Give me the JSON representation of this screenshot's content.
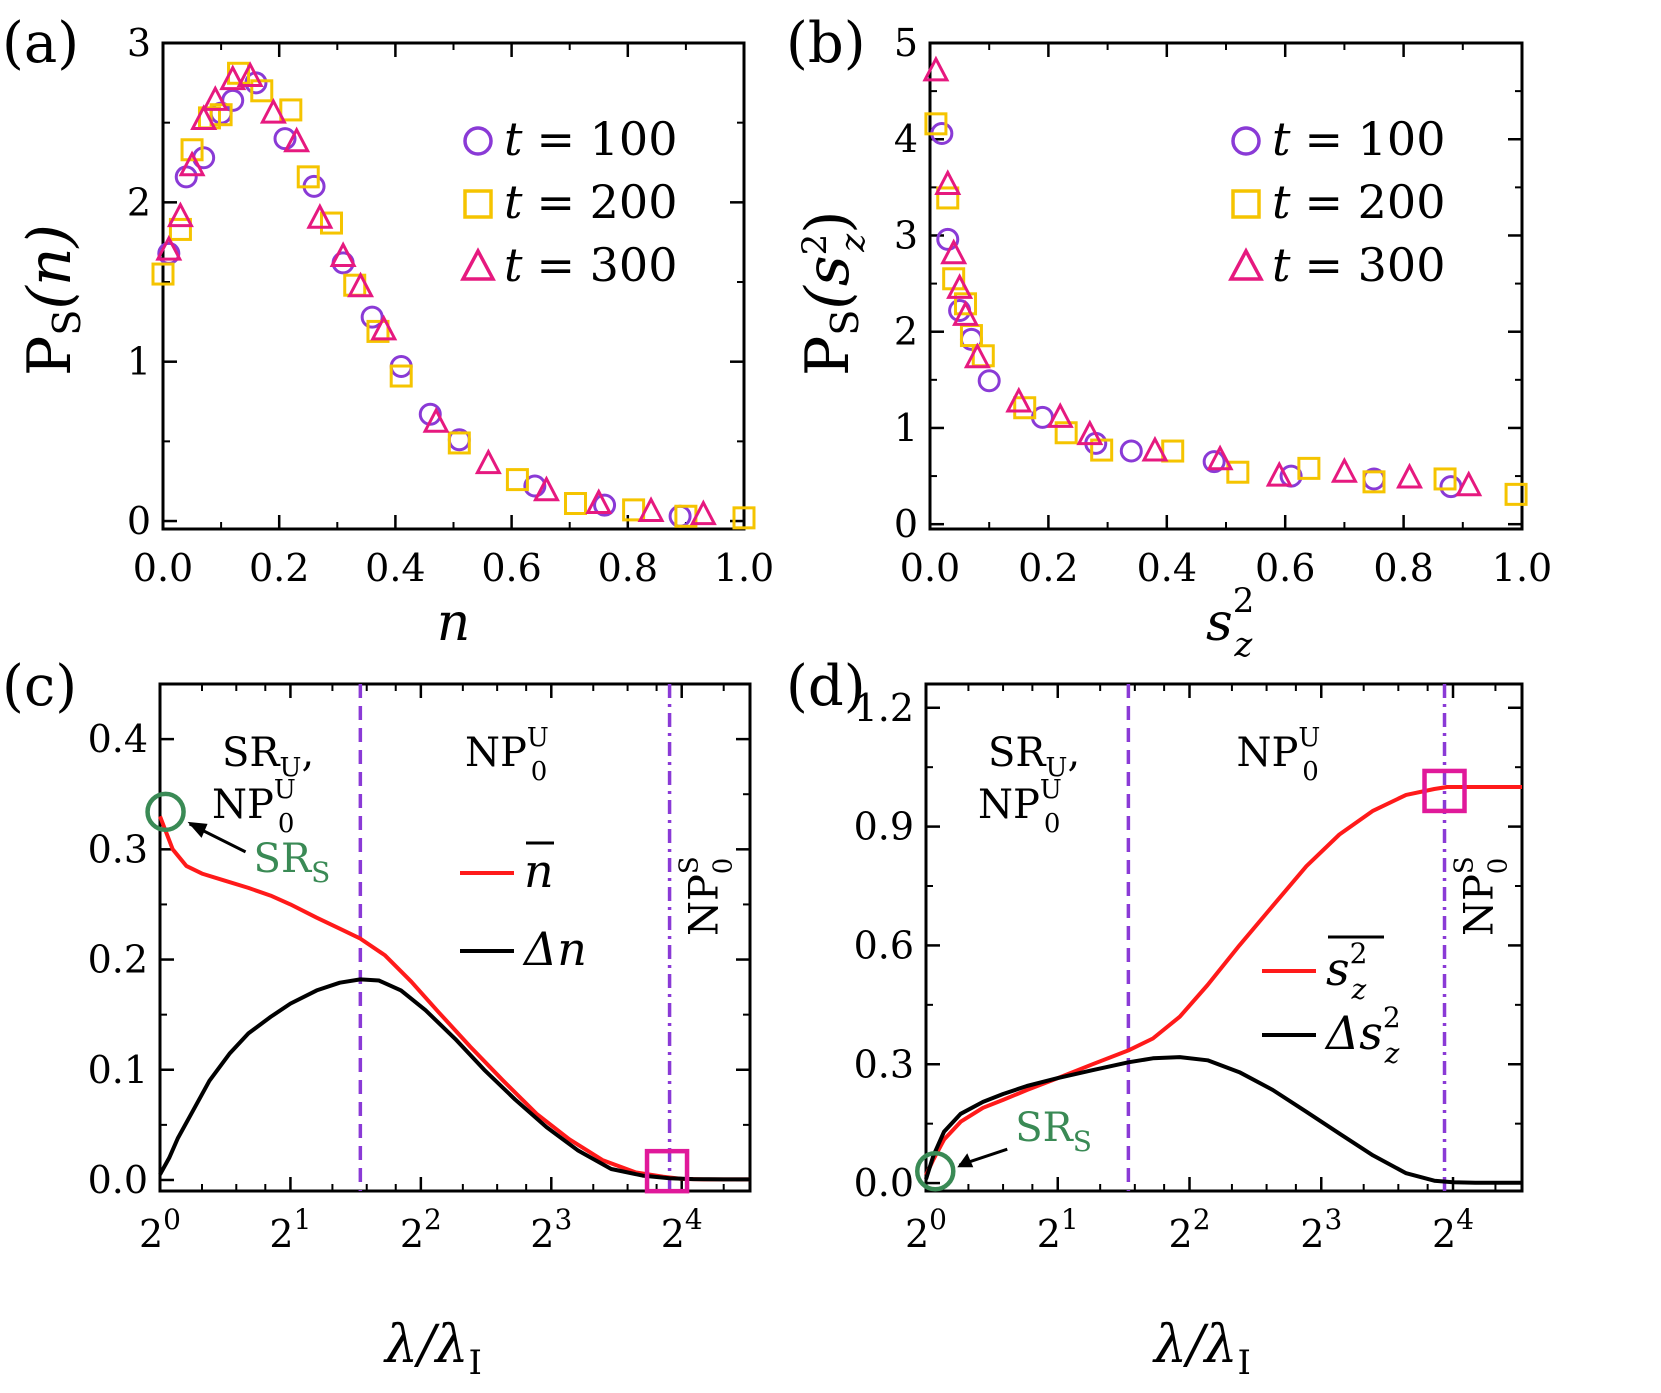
{
  "colors": {
    "purple": "#8a3ad6",
    "yellow": "#f5c400",
    "magenta": "#e6197f",
    "red": "#ff1a1a",
    "black": "#000000",
    "green": "#3a8a55",
    "dash_purple": "#8a3ad6",
    "square_magenta": "#e0199a"
  },
  "chart_data": [
    {
      "id": "a",
      "type": "scatter",
      "panel_label": "(a)",
      "xlabel": "n",
      "ylabel_main": "P",
      "ylabel_sub": "S",
      "ylabel_arg": "(n)",
      "xlim": [
        0,
        1.0
      ],
      "ylim": [
        -0.05,
        3.0
      ],
      "xticks": [
        0.0,
        0.2,
        0.4,
        0.6,
        0.8,
        1.0
      ],
      "xtick_labels": [
        "0.0",
        "0.2",
        "0.4",
        "0.6",
        "0.8",
        "1.0"
      ],
      "yticks": [
        0,
        1,
        2,
        3
      ],
      "ytick_labels": [
        "0",
        "1",
        "2",
        "3"
      ],
      "legend_position": "right",
      "series": [
        {
          "name": "t = 100",
          "label_var": "t",
          "label_val": "= 100",
          "marker": "circle",
          "color": "#8a3ad6",
          "x": [
            0.01,
            0.04,
            0.07,
            0.1,
            0.12,
            0.16,
            0.21,
            0.26,
            0.31,
            0.36,
            0.41,
            0.46,
            0.51,
            0.64,
            0.76,
            0.89
          ],
          "y": [
            1.68,
            2.16,
            2.28,
            2.56,
            2.64,
            2.75,
            2.4,
            2.1,
            1.62,
            1.28,
            0.97,
            0.67,
            0.51,
            0.22,
            0.1,
            0.03
          ]
        },
        {
          "name": "t = 200",
          "label_var": "t",
          "label_val": "= 200",
          "marker": "square",
          "color": "#f5c400",
          "x": [
            0.0,
            0.03,
            0.05,
            0.08,
            0.1,
            0.13,
            0.17,
            0.22,
            0.25,
            0.29,
            0.33,
            0.37,
            0.41,
            0.51,
            0.61,
            0.71,
            0.81,
            0.9,
            1.0
          ],
          "y": [
            1.55,
            1.83,
            2.33,
            2.53,
            2.55,
            2.81,
            2.7,
            2.58,
            2.16,
            1.87,
            1.48,
            1.19,
            0.91,
            0.49,
            0.26,
            0.11,
            0.07,
            0.03,
            0.02
          ]
        },
        {
          "name": "t = 300",
          "label_var": "t",
          "label_val": "= 300",
          "marker": "triangle",
          "color": "#e6197f",
          "x": [
            0.01,
            0.03,
            0.05,
            0.07,
            0.09,
            0.12,
            0.15,
            0.19,
            0.23,
            0.27,
            0.31,
            0.34,
            0.38,
            0.47,
            0.56,
            0.66,
            0.75,
            0.84,
            0.93
          ],
          "y": [
            1.7,
            1.91,
            2.23,
            2.52,
            2.64,
            2.77,
            2.79,
            2.56,
            2.38,
            1.9,
            1.66,
            1.47,
            1.2,
            0.62,
            0.36,
            0.19,
            0.11,
            0.06,
            0.04
          ]
        }
      ]
    },
    {
      "id": "b",
      "type": "scatter",
      "panel_label": "(b)",
      "xlabel": "s",
      "xlabel_sub": "z",
      "xlabel_sup": "2",
      "ylabel_main": "P",
      "ylabel_sub": "S",
      "ylabel_arg_open": "(s",
      "ylabel_arg_sub": "z",
      "ylabel_arg_sup": "2",
      "ylabel_arg_close": ")",
      "xlim": [
        0,
        1.0
      ],
      "ylim": [
        -0.05,
        5.0
      ],
      "xticks": [
        0.0,
        0.2,
        0.4,
        0.6,
        0.8,
        1.0
      ],
      "xtick_labels": [
        "0.0",
        "0.2",
        "0.4",
        "0.6",
        "0.8",
        "1.0"
      ],
      "yticks": [
        0,
        1,
        2,
        3,
        4,
        5
      ],
      "ytick_labels": [
        "0",
        "1",
        "2",
        "3",
        "4",
        "5"
      ],
      "legend_position": "top-right",
      "series": [
        {
          "name": "t = 100",
          "label_var": "t",
          "label_val": "= 100",
          "marker": "circle",
          "color": "#8a3ad6",
          "x": [
            0.02,
            0.03,
            0.05,
            0.07,
            0.1,
            0.19,
            0.28,
            0.34,
            0.48,
            0.61,
            0.75,
            0.88
          ],
          "y": [
            4.06,
            2.96,
            2.22,
            1.92,
            1.49,
            1.11,
            0.84,
            0.76,
            0.65,
            0.5,
            0.47,
            0.39
          ]
        },
        {
          "name": "t = 200",
          "label_var": "t",
          "label_val": "= 200",
          "marker": "square",
          "color": "#f5c400",
          "x": [
            0.01,
            0.03,
            0.04,
            0.06,
            0.07,
            0.09,
            0.16,
            0.23,
            0.29,
            0.41,
            0.52,
            0.64,
            0.75,
            0.87,
            0.99
          ],
          "y": [
            4.16,
            3.39,
            2.55,
            2.29,
            1.96,
            1.75,
            1.21,
            0.95,
            0.77,
            0.76,
            0.54,
            0.58,
            0.44,
            0.47,
            0.31
          ]
        },
        {
          "name": "t = 300",
          "label_var": "t",
          "label_val": "= 300",
          "marker": "triangle",
          "color": "#e6197f",
          "x": [
            0.01,
            0.03,
            0.04,
            0.05,
            0.06,
            0.08,
            0.15,
            0.22,
            0.27,
            0.38,
            0.49,
            0.59,
            0.7,
            0.81,
            0.91
          ],
          "y": [
            4.71,
            3.53,
            2.81,
            2.45,
            2.17,
            1.73,
            1.27,
            1.11,
            0.93,
            0.76,
            0.67,
            0.5,
            0.54,
            0.48,
            0.4
          ]
        }
      ]
    },
    {
      "id": "c",
      "type": "line",
      "panel_label": "(c)",
      "xscale": "log2",
      "xlabel_main": "λ/λ",
      "xlabel_sub": "I",
      "xlim": [
        1.0,
        23.0
      ],
      "ylim": [
        -0.01,
        0.45
      ],
      "xtick_values": [
        1,
        2,
        4,
        8,
        16
      ],
      "xtick_base": "2",
      "xtick_exps": [
        "0",
        "1",
        "2",
        "3",
        "4"
      ],
      "yticks": [
        0.0,
        0.1,
        0.2,
        0.3,
        0.4
      ],
      "ytick_labels": [
        "0.0",
        "0.1",
        "0.2",
        "0.3",
        "0.4"
      ],
      "dashed_line_x": 2.9,
      "dashdot_line_x": 15.0,
      "regions": {
        "left_line1_main": "SR",
        "left_line1_sub": "U",
        "left_line1_tail": ",",
        "left_line2_main": "NP",
        "left_line2_sub": "0",
        "left_line2_sup": "U",
        "mid_main": "NP",
        "mid_sub": "0",
        "mid_sup": "U",
        "right_main": "NP",
        "right_sub": "0",
        "right_sup": "S"
      },
      "annotation_main": "SR",
      "annotation_sub": "S",
      "circle_marker": {
        "x": 1.03,
        "y": 0.334
      },
      "square_marker": {
        "x": 14.8,
        "y": 0.008
      },
      "legend_position": "center-right",
      "series": [
        {
          "name": "n̄",
          "legend_main": "n",
          "legend_overbar": true,
          "color": "#ff1a1a",
          "x": [
            1.0,
            1.07,
            1.15,
            1.25,
            1.4,
            1.6,
            1.8,
            2.0,
            2.3,
            2.6,
            2.9,
            3.3,
            3.8,
            4.4,
            5.2,
            6.2,
            7.4,
            8.8,
            10.5,
            12.5,
            14.5,
            16.0,
            18.0,
            20.0,
            23.0
          ],
          "y": [
            0.33,
            0.3,
            0.285,
            0.278,
            0.272,
            0.265,
            0.258,
            0.25,
            0.238,
            0.228,
            0.219,
            0.204,
            0.18,
            0.152,
            0.121,
            0.09,
            0.06,
            0.037,
            0.018,
            0.007,
            0.003,
            0.001,
            0.0005,
            0.0005,
            0.0005
          ]
        },
        {
          "name": "Δn",
          "legend_main": "Δn",
          "color": "#000000",
          "x": [
            1.0,
            1.05,
            1.1,
            1.2,
            1.3,
            1.45,
            1.6,
            1.8,
            2.0,
            2.3,
            2.6,
            2.9,
            3.2,
            3.6,
            4.1,
            4.8,
            5.6,
            6.6,
            7.8,
            9.2,
            11.0,
            13.0,
            15.0,
            17.0,
            20.0,
            23.0
          ],
          "y": [
            0.005,
            0.02,
            0.038,
            0.065,
            0.09,
            0.115,
            0.133,
            0.148,
            0.16,
            0.172,
            0.179,
            0.182,
            0.181,
            0.172,
            0.154,
            0.128,
            0.1,
            0.073,
            0.048,
            0.027,
            0.01,
            0.004,
            0.0015,
            0.0008,
            0.0005,
            0.0005
          ]
        }
      ]
    },
    {
      "id": "d",
      "type": "line",
      "panel_label": "(d)",
      "xscale": "log2",
      "xlabel_main": "λ/λ",
      "xlabel_sub": "I",
      "xlim": [
        1.0,
        23.0
      ],
      "ylim": [
        -0.02,
        1.26
      ],
      "xtick_values": [
        1,
        2,
        4,
        8,
        16
      ],
      "xtick_base": "2",
      "xtick_exps": [
        "0",
        "1",
        "2",
        "3",
        "4"
      ],
      "yticks": [
        0.0,
        0.3,
        0.6,
        0.9,
        1.2
      ],
      "ytick_labels": [
        "0.0",
        "0.3",
        "0.6",
        "0.9",
        "1.2"
      ],
      "dashed_line_x": 2.9,
      "dashdot_line_x": 15.3,
      "regions": {
        "left_line1_main": "SR",
        "left_line1_sub": "U",
        "left_line1_tail": ",",
        "left_line2_main": "NP",
        "left_line2_sub": "0",
        "left_line2_sup": "U",
        "mid_main": "NP",
        "mid_sub": "0",
        "mid_sup": "U",
        "right_main": "NP",
        "right_sub": "0",
        "right_sup": "S"
      },
      "annotation_main": "SR",
      "annotation_sub": "S",
      "circle_marker": {
        "x": 1.05,
        "y": 0.03
      },
      "square_marker": {
        "x": 15.3,
        "y": 0.99
      },
      "legend_position": "center-right",
      "series": [
        {
          "name": "s_z² (mean)",
          "legend_main": "s",
          "legend_sub": "z",
          "legend_sup": "2",
          "legend_overbar": true,
          "color": "#ff1a1a",
          "x": [
            1.0,
            1.04,
            1.1,
            1.2,
            1.35,
            1.5,
            1.7,
            2.0,
            2.4,
            2.9,
            3.3,
            3.8,
            4.4,
            5.2,
            6.2,
            7.4,
            8.8,
            10.5,
            12.5,
            14.5,
            15.5,
            17.0,
            20.0,
            23.0
          ],
          "y": [
            0.02,
            0.06,
            0.11,
            0.155,
            0.19,
            0.21,
            0.235,
            0.265,
            0.3,
            0.335,
            0.365,
            0.42,
            0.5,
            0.6,
            0.7,
            0.8,
            0.88,
            0.94,
            0.98,
            0.995,
            1.0,
            1.0,
            1.0,
            1.0
          ]
        },
        {
          "name": "Δs_z²",
          "legend_main": "Δs",
          "legend_sub": "z",
          "legend_sup": "2",
          "color": "#000000",
          "x": [
            1.0,
            1.04,
            1.1,
            1.2,
            1.35,
            1.5,
            1.7,
            2.0,
            2.4,
            2.9,
            3.3,
            3.8,
            4.4,
            5.2,
            6.2,
            7.4,
            8.8,
            10.5,
            12.5,
            14.5,
            16.0,
            18.0,
            20.0,
            23.0
          ],
          "y": [
            0.01,
            0.07,
            0.13,
            0.175,
            0.205,
            0.225,
            0.245,
            0.265,
            0.285,
            0.305,
            0.315,
            0.318,
            0.31,
            0.28,
            0.235,
            0.18,
            0.125,
            0.07,
            0.025,
            0.006,
            0.002,
            0.001,
            0.001,
            0.001
          ]
        }
      ]
    }
  ]
}
